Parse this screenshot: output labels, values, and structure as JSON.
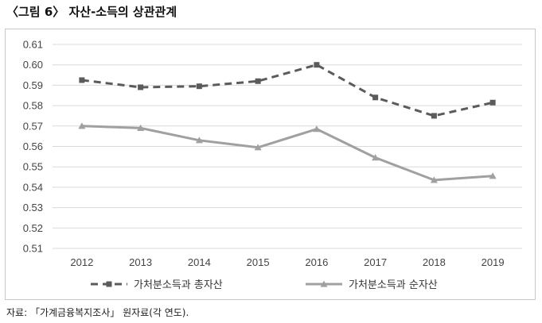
{
  "figure": {
    "title": "〈그림 6〉 자산-소득의 상관관계",
    "source": "자료: 「가계금융복지조사」 원자료(각 연도)."
  },
  "chart_data": {
    "type": "line",
    "title": "",
    "xlabel": "",
    "ylabel": "",
    "categories": [
      "2012",
      "2013",
      "2014",
      "2015",
      "2016",
      "2017",
      "2018",
      "2019"
    ],
    "ylim": [
      0.51,
      0.61
    ],
    "yticks": [
      "0.51",
      "0.52",
      "0.53",
      "0.54",
      "0.55",
      "0.56",
      "0.57",
      "0.58",
      "0.59",
      "0.60",
      "0.61"
    ],
    "grid": true,
    "legend_position": "bottom",
    "series": [
      {
        "name": "가처분소득과 총자산",
        "values": [
          0.5925,
          0.589,
          0.5895,
          0.592,
          0.6,
          0.584,
          0.575,
          0.5815
        ],
        "color": "#5b5b5b",
        "line_style": "dashed",
        "marker": "square"
      },
      {
        "name": "가처분소득과 순자산",
        "values": [
          0.57,
          0.569,
          0.563,
          0.5595,
          0.5685,
          0.5545,
          0.5435,
          0.5455
        ],
        "color": "#a0a0a0",
        "line_style": "solid",
        "marker": "triangle"
      }
    ]
  }
}
